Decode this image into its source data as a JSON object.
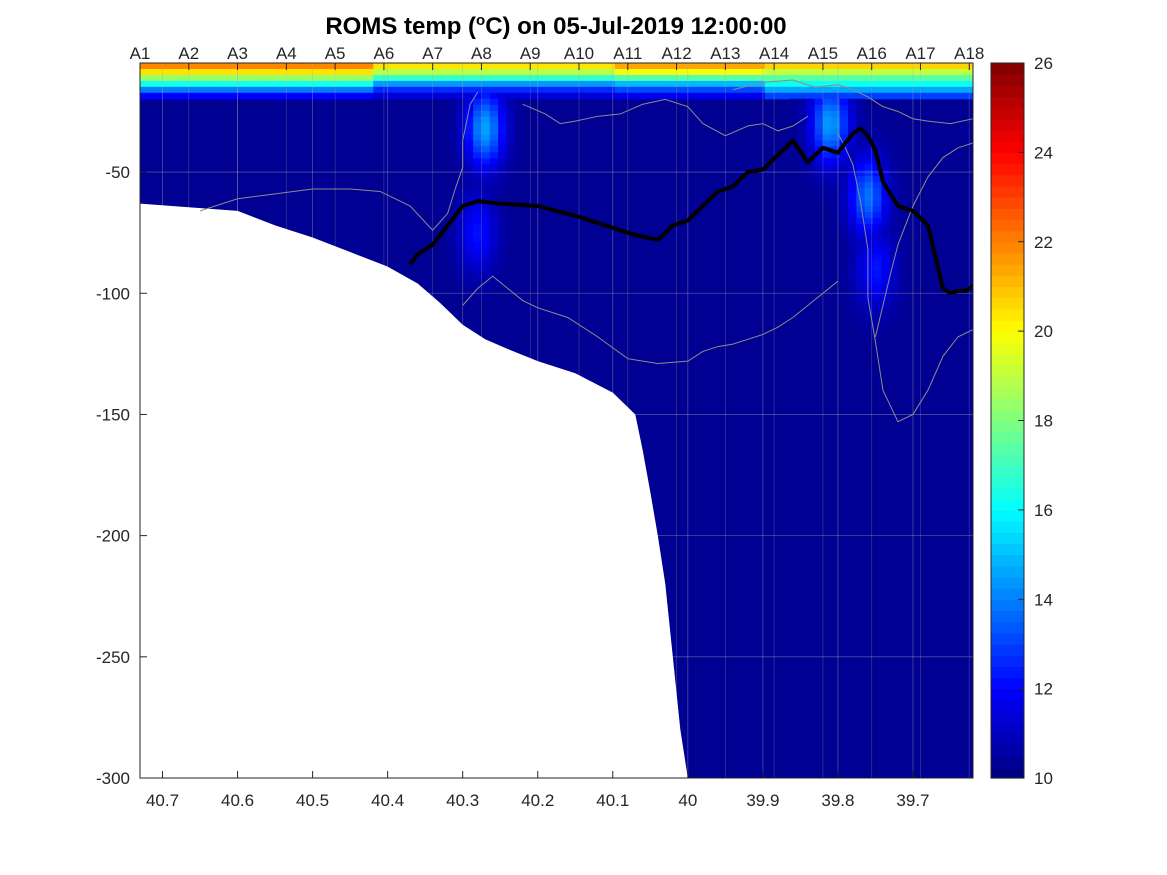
{
  "chart_data": {
    "type": "heatmap",
    "title": "ROMS temp (°C) on 05-Jul-2019 12:00:00",
    "title_parts": {
      "prefix": "ROMS temp (",
      "superscript": "o",
      "suffix": "C) on 05-Jul-2019 12:00:00"
    },
    "x_axis": {
      "label": "",
      "reversed": true,
      "lim": [
        40.73,
        39.62
      ],
      "ticks": [
        40.7,
        40.6,
        40.5,
        40.4,
        40.3,
        40.2,
        40.1,
        40,
        39.9,
        39.8,
        39.7
      ],
      "tick_labels": [
        "40.7",
        "40.6",
        "40.5",
        "40.4",
        "40.3",
        "40.2",
        "40.1",
        "40",
        "39.9",
        "39.8",
        "39.7"
      ]
    },
    "y_axis": {
      "label": "",
      "lim": [
        -300,
        -5
      ],
      "ticks": [
        -50,
        -100,
        -150,
        -200,
        -250,
        -300
      ],
      "tick_labels": [
        "-50",
        "-100",
        "-150",
        "-200",
        "-250",
        "-300"
      ]
    },
    "station_axis": {
      "position": "top",
      "labels": [
        "A1",
        "A2",
        "A3",
        "A4",
        "A5",
        "A6",
        "A7",
        "A8",
        "A9",
        "A10",
        "A11",
        "A12",
        "A13",
        "A14",
        "A15",
        "A16",
        "A17",
        "A18"
      ],
      "lats": [
        40.73,
        40.665,
        40.6,
        40.535,
        40.47,
        40.405,
        40.34,
        40.275,
        40.21,
        40.145,
        40.08,
        40.015,
        39.95,
        39.885,
        39.82,
        39.755,
        39.69,
        39.625
      ]
    },
    "grid": true,
    "colorbar": {
      "position": "right",
      "lim": [
        10,
        26
      ],
      "ticks": [
        10,
        12,
        14,
        16,
        18,
        20,
        22,
        24,
        26
      ],
      "tick_labels": [
        "10",
        "12",
        "14",
        "16",
        "18",
        "20",
        "22",
        "24",
        "26"
      ],
      "colormap": "jet"
    },
    "bathymetry": {
      "lat": [
        40.73,
        40.6,
        40.55,
        40.5,
        40.45,
        40.4,
        40.36,
        40.33,
        40.3,
        40.27,
        40.24,
        40.2,
        40.15,
        40.1,
        40.07,
        40.06,
        40.05,
        40.04,
        40.03,
        40.02,
        40.01,
        40.0
      ],
      "depth": [
        -63,
        -66,
        -72,
        -77,
        -83,
        -89,
        -96,
        -104,
        -113,
        -119,
        -123,
        -128,
        -133,
        -141,
        -150,
        -165,
        -182,
        -200,
        -220,
        -250,
        -280,
        -300
      ]
    },
    "temperature_field": {
      "surface_layer": [
        {
          "lat_from": 40.73,
          "lat_to": 40.42,
          "depths": [
            -5,
            -8,
            -11,
            -14,
            -17,
            -20
          ],
          "temps": [
            22.5,
            21,
            18.5,
            16,
            13,
            11
          ]
        },
        {
          "lat_from": 40.42,
          "lat_to": 40.1,
          "depths": [
            -5,
            -8,
            -11,
            -14,
            -17,
            -20
          ],
          "temps": [
            21,
            19.5,
            17,
            14,
            12,
            10.8
          ]
        },
        {
          "lat_from": 40.1,
          "lat_to": 39.9,
          "depths": [
            -5,
            -8,
            -11,
            -14,
            -17,
            -20
          ],
          "temps": [
            22,
            20.5,
            17.5,
            14.5,
            12.5,
            11
          ]
        },
        {
          "lat_from": 39.9,
          "lat_to": 39.62,
          "depths": [
            -5,
            -8,
            -11,
            -14,
            -17,
            -20
          ],
          "temps": [
            21.5,
            19.5,
            17.5,
            16,
            14,
            12
          ]
        }
      ],
      "interior_temp": 10.3,
      "warm_features": [
        {
          "lat": 40.27,
          "depth": -32,
          "temp": 14.5
        },
        {
          "lat": 40.28,
          "depth": -75,
          "temp": 12.2
        },
        {
          "lat": 39.81,
          "depth": -30,
          "temp": 14.5
        },
        {
          "lat": 39.76,
          "depth": -60,
          "temp": 13.8
        },
        {
          "lat": 39.75,
          "depth": -90,
          "temp": 12.3
        }
      ]
    },
    "contour_thick": {
      "level": 10.5,
      "lat": [
        40.37,
        40.36,
        40.34,
        40.32,
        40.3,
        40.28,
        40.25,
        40.2,
        40.15,
        40.1,
        40.07,
        40.04,
        40.02,
        40.0,
        39.98,
        39.96,
        39.94,
        39.92,
        39.9,
        39.88,
        39.86,
        39.84,
        39.82,
        39.8,
        39.78,
        39.77,
        39.76,
        39.75,
        39.74,
        39.72,
        39.7,
        39.68,
        39.66,
        39.65,
        39.64,
        39.63,
        39.62
      ],
      "depth": [
        -88,
        -84,
        -80,
        -72,
        -64,
        -62,
        -63,
        -64,
        -68,
        -73,
        -76,
        -78,
        -72,
        -70,
        -64,
        -58,
        -56,
        -50,
        -49,
        -43,
        -37,
        -46,
        -40,
        -42,
        -34,
        -32,
        -35,
        -41,
        -54,
        -64,
        -66,
        -72,
        -98,
        -100,
        -99,
        -99,
        -97
      ]
    },
    "contours_thin": [
      {
        "lat": [
          40.3,
          40.28,
          40.26,
          40.24,
          40.22,
          40.2,
          40.16,
          40.12,
          40.08,
          40.04,
          40.0,
          39.98,
          39.96,
          39.94,
          39.92,
          39.9,
          39.88,
          39.86,
          39.84,
          39.82,
          39.8
        ],
        "depth": [
          -105,
          -98,
          -93,
          -98,
          -103,
          -106,
          -110,
          -118,
          -127,
          -129,
          -128,
          -124,
          -122,
          -121,
          -119,
          -117,
          -114,
          -110,
          -105,
          -100,
          -95
        ]
      },
      {
        "lat": [
          40.65,
          40.6,
          40.55,
          40.5,
          40.45,
          40.41,
          40.37,
          40.34,
          40.32,
          40.31,
          40.3,
          40.3,
          40.29,
          40.28
        ],
        "depth": [
          -66,
          -61,
          -59,
          -57,
          -57,
          -58,
          -64,
          -74,
          -67,
          -57,
          -48,
          -37,
          -22,
          -17
        ]
      },
      {
        "lat": [
          40.22,
          40.19,
          40.17,
          40.15,
          40.12,
          40.09,
          40.06,
          40.03,
          40.0,
          39.98,
          39.95,
          39.92,
          39.9,
          39.88,
          39.86,
          39.84
        ],
        "depth": [
          -22,
          -26,
          -30,
          -29,
          -27,
          -26,
          -22,
          -20,
          -23,
          -30,
          -35,
          -31,
          -30,
          -33,
          -31,
          -27
        ]
      },
      {
        "lat": [
          39.94,
          39.9,
          39.86,
          39.83,
          39.8,
          39.78,
          39.76,
          39.74,
          39.72,
          39.7,
          39.68,
          39.65,
          39.62
        ],
        "depth": [
          -16,
          -13,
          -12,
          -15,
          -14,
          -16,
          -19,
          -23,
          -25,
          -28,
          -29,
          -30,
          -28
        ]
      },
      {
        "lat": [
          39.62,
          39.64,
          39.66,
          39.68,
          39.69,
          39.7,
          39.72,
          39.74,
          39.75,
          39.76,
          39.76,
          39.77,
          39.78,
          39.79,
          39.8
        ],
        "depth": [
          -115,
          -118,
          -126,
          -140,
          -145,
          -150,
          -153,
          -140,
          -120,
          -102,
          -82,
          -62,
          -47,
          -40,
          -34
        ]
      },
      {
        "lat": [
          39.75,
          39.74,
          39.73,
          39.72,
          39.7,
          39.68,
          39.66,
          39.64,
          39.62
        ],
        "depth": [
          -118,
          -105,
          -92,
          -80,
          -64,
          -52,
          -44,
          -40,
          -38
        ]
      }
    ]
  }
}
